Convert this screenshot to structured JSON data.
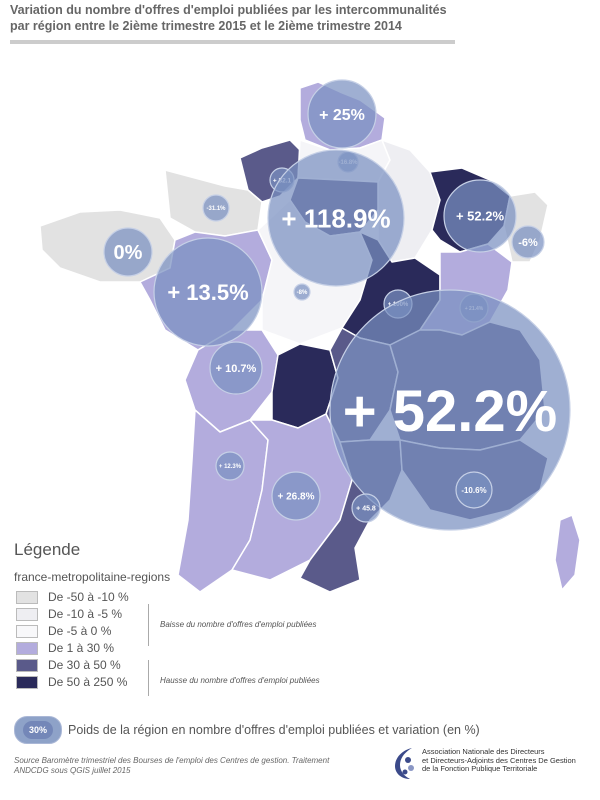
{
  "title_line1": "Variation du nombre d'offres d'emploi publiées par les intercommunalités",
  "title_line2": "par région entre le 2ième trimestre 2015 et le 2ième trimestre 2014",
  "colors": {
    "very_light": "#e2e2e2",
    "light": "#eeeef2",
    "lightest": "#f5f5f8",
    "lavender": "#b3acdd",
    "medium": "#5a5a8a",
    "dark": "#2a2a5a",
    "bubble": "#7a90c0"
  },
  "bubbles": [
    {
      "label": "+ 25%",
      "value": 25
    },
    {
      "label": "-16.8%",
      "value": -16.8
    },
    {
      "label": "+ 32.1",
      "value": 32.1
    },
    {
      "label": "-31.1%",
      "value": -31.1
    },
    {
      "label": "+ 118.9%",
      "value": 118.9
    },
    {
      "label": "+ 52.2%",
      "value": 52.2
    },
    {
      "label": "-6%",
      "value": -6
    },
    {
      "label": "0%",
      "value": 0
    },
    {
      "label": "+ 13.5%",
      "value": 13.5
    },
    {
      "label": "-8%",
      "value": -8
    },
    {
      "label": "+ 100%",
      "value": 100
    },
    {
      "label": "+ 21.4%",
      "value": 21.4
    },
    {
      "label": "+ 10.7%",
      "value": 10.7
    },
    {
      "label": "+ 52.2%",
      "value": 52.2
    },
    {
      "label": "+ 12.3%",
      "value": 12.3
    },
    {
      "label": "+ 26.8%",
      "value": 26.8
    },
    {
      "label": "+ 45.8",
      "value": 45.8
    },
    {
      "label": "-10.6%",
      "value": -10.6
    }
  ],
  "legend": {
    "title": "Légende",
    "subtitle": "france-metropolitaine-regions",
    "classes": [
      {
        "label": "De -50 à -10 %",
        "color": "#e2e2e2"
      },
      {
        "label": "De -10 à -5 %",
        "color": "#eeeef2"
      },
      {
        "label": "De -5 à 0 %",
        "color": "#f8f8fa"
      },
      {
        "label": "De 1 à 30 %",
        "color": "#b3acdd"
      },
      {
        "label": "De 30 à 50 %",
        "color": "#5a5a8a"
      },
      {
        "label": "De 50 à 250 %",
        "color": "#2a2a5a"
      }
    ],
    "note_decrease": "Baisse du nombre d'offres d'emploi publiées",
    "note_increase": "Hausse du nombre d'offres d'emploi publiées",
    "bubble_sample": "30%",
    "bubble_caption": "Poids de la région en nombre d'offres d'emploi publiées et variation (en %)"
  },
  "source_line1": "Source Baromètre trimestriel des Bourses de l'emploi des Centres de gestion. Traitement",
  "source_line2": "ANDCDG sous QGIS juillet 2015",
  "logo": {
    "line1": "Association Nationale des Directeurs",
    "line2": "et Directeurs-Adjoints des Centres De Gestion",
    "line3": "de la Fonction Publique Territoriale"
  }
}
